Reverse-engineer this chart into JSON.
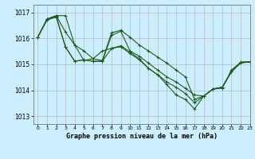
{
  "title": "Graphe pression niveau de la mer (hPa)",
  "bg_color": "#cceeff",
  "grid_color": "#b0b0b0",
  "line_color": "#1e5c1e",
  "xlim": [
    -0.5,
    23
  ],
  "ylim": [
    1012.7,
    1017.3
  ],
  "yticks": [
    1013,
    1014,
    1015,
    1016,
    1017
  ],
  "xticks": [
    0,
    1,
    2,
    3,
    4,
    5,
    6,
    7,
    8,
    9,
    10,
    11,
    12,
    13,
    14,
    15,
    16,
    17,
    18,
    19,
    20,
    21,
    22,
    23
  ],
  "line1": [
    1016.05,
    1016.75,
    1016.88,
    1016.88,
    1015.75,
    1015.15,
    1015.22,
    1015.15,
    1016.22,
    1016.32,
    1016.05,
    1015.75,
    1015.52,
    1015.28,
    1015.05,
    1014.78,
    1014.52,
    1013.65,
    1013.78,
    1014.05,
    1014.08,
    1014.78,
    1015.08,
    1015.1
  ],
  "line2": [
    1016.05,
    1016.75,
    1016.88,
    1016.25,
    1015.75,
    1015.52,
    1015.22,
    1015.52,
    1015.62,
    1015.72,
    1015.48,
    1015.22,
    1014.85,
    1014.6,
    1014.22,
    1013.82,
    1013.65,
    1013.28,
    1013.78,
    1014.05,
    1014.12,
    1014.72,
    1015.08,
    1015.1
  ],
  "line3": [
    1016.05,
    1016.72,
    1016.85,
    1015.68,
    1015.12,
    1015.18,
    1015.12,
    1015.12,
    1015.62,
    1015.68,
    1015.42,
    1015.18,
    1014.85,
    1014.6,
    1014.32,
    1014.12,
    1013.88,
    1013.52,
    1013.78,
    1014.05,
    1014.12,
    1014.72,
    1015.08,
    1015.1
  ],
  "line4": [
    1016.05,
    1016.72,
    1016.82,
    1015.68,
    1015.12,
    1015.18,
    1015.12,
    1015.12,
    1016.12,
    1016.28,
    1015.52,
    1015.32,
    1015.05,
    1014.78,
    1014.52,
    1014.32,
    1014.08,
    1013.82,
    1013.78,
    1014.05,
    1014.12,
    1014.72,
    1015.05,
    1015.1
  ]
}
